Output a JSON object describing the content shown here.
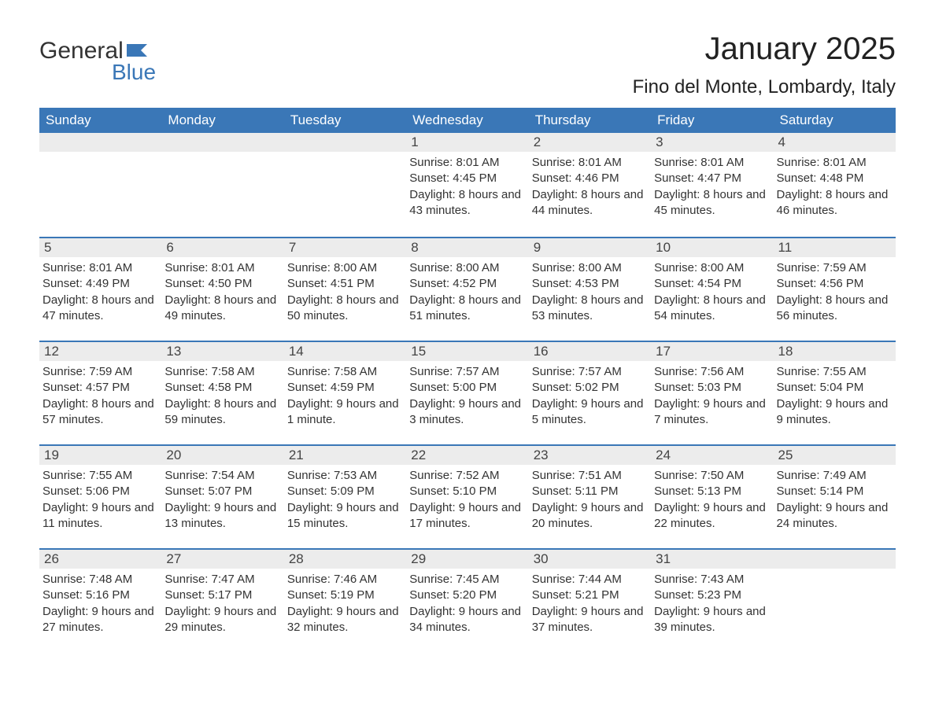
{
  "logo": {
    "text_general": "General",
    "text_blue": "Blue",
    "color_blue": "#3a77b7",
    "color_dark": "#333333"
  },
  "header": {
    "month_title": "January 2025",
    "location": "Fino del Monte, Lombardy, Italy"
  },
  "styling": {
    "header_bg": "#3a77b7",
    "header_text": "#ffffff",
    "daynum_bg": "#ececec",
    "week_border": "#3a77b7",
    "body_text": "#333333",
    "page_bg": "#ffffff",
    "title_fontsize": 40,
    "location_fontsize": 24,
    "weekday_fontsize": 17,
    "cell_fontsize": 15
  },
  "weekdays": [
    "Sunday",
    "Monday",
    "Tuesday",
    "Wednesday",
    "Thursday",
    "Friday",
    "Saturday"
  ],
  "weeks": [
    [
      {
        "n": "",
        "sr": "",
        "ss": "",
        "dl": ""
      },
      {
        "n": "",
        "sr": "",
        "ss": "",
        "dl": ""
      },
      {
        "n": "",
        "sr": "",
        "ss": "",
        "dl": ""
      },
      {
        "n": "1",
        "sr": "Sunrise: 8:01 AM",
        "ss": "Sunset: 4:45 PM",
        "dl": "Daylight: 8 hours and 43 minutes."
      },
      {
        "n": "2",
        "sr": "Sunrise: 8:01 AM",
        "ss": "Sunset: 4:46 PM",
        "dl": "Daylight: 8 hours and 44 minutes."
      },
      {
        "n": "3",
        "sr": "Sunrise: 8:01 AM",
        "ss": "Sunset: 4:47 PM",
        "dl": "Daylight: 8 hours and 45 minutes."
      },
      {
        "n": "4",
        "sr": "Sunrise: 8:01 AM",
        "ss": "Sunset: 4:48 PM",
        "dl": "Daylight: 8 hours and 46 minutes."
      }
    ],
    [
      {
        "n": "5",
        "sr": "Sunrise: 8:01 AM",
        "ss": "Sunset: 4:49 PM",
        "dl": "Daylight: 8 hours and 47 minutes."
      },
      {
        "n": "6",
        "sr": "Sunrise: 8:01 AM",
        "ss": "Sunset: 4:50 PM",
        "dl": "Daylight: 8 hours and 49 minutes."
      },
      {
        "n": "7",
        "sr": "Sunrise: 8:00 AM",
        "ss": "Sunset: 4:51 PM",
        "dl": "Daylight: 8 hours and 50 minutes."
      },
      {
        "n": "8",
        "sr": "Sunrise: 8:00 AM",
        "ss": "Sunset: 4:52 PM",
        "dl": "Daylight: 8 hours and 51 minutes."
      },
      {
        "n": "9",
        "sr": "Sunrise: 8:00 AM",
        "ss": "Sunset: 4:53 PM",
        "dl": "Daylight: 8 hours and 53 minutes."
      },
      {
        "n": "10",
        "sr": "Sunrise: 8:00 AM",
        "ss": "Sunset: 4:54 PM",
        "dl": "Daylight: 8 hours and 54 minutes."
      },
      {
        "n": "11",
        "sr": "Sunrise: 7:59 AM",
        "ss": "Sunset: 4:56 PM",
        "dl": "Daylight: 8 hours and 56 minutes."
      }
    ],
    [
      {
        "n": "12",
        "sr": "Sunrise: 7:59 AM",
        "ss": "Sunset: 4:57 PM",
        "dl": "Daylight: 8 hours and 57 minutes."
      },
      {
        "n": "13",
        "sr": "Sunrise: 7:58 AM",
        "ss": "Sunset: 4:58 PM",
        "dl": "Daylight: 8 hours and 59 minutes."
      },
      {
        "n": "14",
        "sr": "Sunrise: 7:58 AM",
        "ss": "Sunset: 4:59 PM",
        "dl": "Daylight: 9 hours and 1 minute."
      },
      {
        "n": "15",
        "sr": "Sunrise: 7:57 AM",
        "ss": "Sunset: 5:00 PM",
        "dl": "Daylight: 9 hours and 3 minutes."
      },
      {
        "n": "16",
        "sr": "Sunrise: 7:57 AM",
        "ss": "Sunset: 5:02 PM",
        "dl": "Daylight: 9 hours and 5 minutes."
      },
      {
        "n": "17",
        "sr": "Sunrise: 7:56 AM",
        "ss": "Sunset: 5:03 PM",
        "dl": "Daylight: 9 hours and 7 minutes."
      },
      {
        "n": "18",
        "sr": "Sunrise: 7:55 AM",
        "ss": "Sunset: 5:04 PM",
        "dl": "Daylight: 9 hours and 9 minutes."
      }
    ],
    [
      {
        "n": "19",
        "sr": "Sunrise: 7:55 AM",
        "ss": "Sunset: 5:06 PM",
        "dl": "Daylight: 9 hours and 11 minutes."
      },
      {
        "n": "20",
        "sr": "Sunrise: 7:54 AM",
        "ss": "Sunset: 5:07 PM",
        "dl": "Daylight: 9 hours and 13 minutes."
      },
      {
        "n": "21",
        "sr": "Sunrise: 7:53 AM",
        "ss": "Sunset: 5:09 PM",
        "dl": "Daylight: 9 hours and 15 minutes."
      },
      {
        "n": "22",
        "sr": "Sunrise: 7:52 AM",
        "ss": "Sunset: 5:10 PM",
        "dl": "Daylight: 9 hours and 17 minutes."
      },
      {
        "n": "23",
        "sr": "Sunrise: 7:51 AM",
        "ss": "Sunset: 5:11 PM",
        "dl": "Daylight: 9 hours and 20 minutes."
      },
      {
        "n": "24",
        "sr": "Sunrise: 7:50 AM",
        "ss": "Sunset: 5:13 PM",
        "dl": "Daylight: 9 hours and 22 minutes."
      },
      {
        "n": "25",
        "sr": "Sunrise: 7:49 AM",
        "ss": "Sunset: 5:14 PM",
        "dl": "Daylight: 9 hours and 24 minutes."
      }
    ],
    [
      {
        "n": "26",
        "sr": "Sunrise: 7:48 AM",
        "ss": "Sunset: 5:16 PM",
        "dl": "Daylight: 9 hours and 27 minutes."
      },
      {
        "n": "27",
        "sr": "Sunrise: 7:47 AM",
        "ss": "Sunset: 5:17 PM",
        "dl": "Daylight: 9 hours and 29 minutes."
      },
      {
        "n": "28",
        "sr": "Sunrise: 7:46 AM",
        "ss": "Sunset: 5:19 PM",
        "dl": "Daylight: 9 hours and 32 minutes."
      },
      {
        "n": "29",
        "sr": "Sunrise: 7:45 AM",
        "ss": "Sunset: 5:20 PM",
        "dl": "Daylight: 9 hours and 34 minutes."
      },
      {
        "n": "30",
        "sr": "Sunrise: 7:44 AM",
        "ss": "Sunset: 5:21 PM",
        "dl": "Daylight: 9 hours and 37 minutes."
      },
      {
        "n": "31",
        "sr": "Sunrise: 7:43 AM",
        "ss": "Sunset: 5:23 PM",
        "dl": "Daylight: 9 hours and 39 minutes."
      },
      {
        "n": "",
        "sr": "",
        "ss": "",
        "dl": ""
      }
    ]
  ]
}
